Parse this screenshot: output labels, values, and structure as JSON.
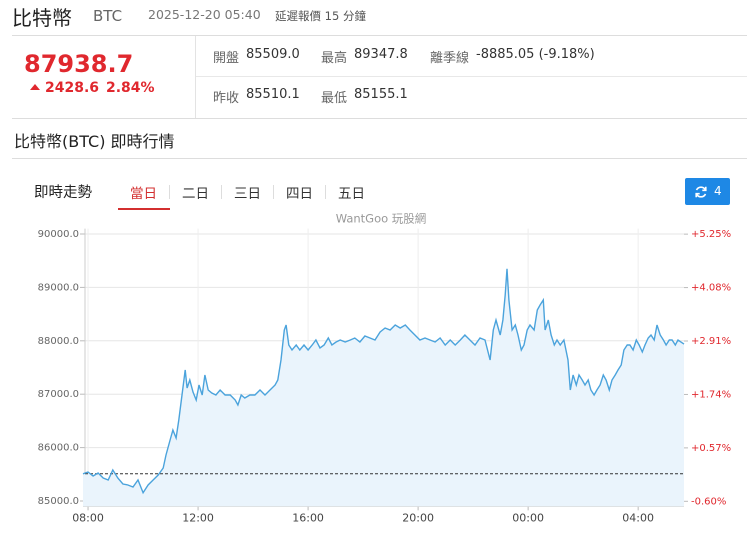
{
  "header": {
    "name": "比特幣",
    "symbol": "BTC",
    "time": "2025-12-20 05:40",
    "delay": "延遲報價 15 分鐘"
  },
  "quote": {
    "price": 87938.7,
    "change": 2428.6,
    "change_pct": "2.84%",
    "stats": [
      {
        "label": "開盤",
        "value": "85509.0"
      },
      {
        "label": "最高",
        "value": 89347.8
      },
      {
        "label": "離季線",
        "value": "-8885.05 (-9.18%)"
      },
      {
        "label": "昨收",
        "value": 85510.1
      },
      {
        "label": "最低",
        "value": 85155.1
      }
    ]
  },
  "section_title": "比特幣(BTC) 即時行情",
  "tabs": {
    "title": "即時走勢",
    "items": [
      "當日",
      "二日",
      "三日",
      "四日",
      "五日"
    ],
    "active": 0,
    "refresh_count": 4
  },
  "chart_data": {
    "type": "line",
    "watermark": "WantGoo 玩股網",
    "color": "#4ba3dc",
    "area_color": "#eaf4fc",
    "grid": true,
    "x": [
      "07:49",
      "08:00",
      "08:11",
      "08:22",
      "08:33",
      "08:44",
      "08:54",
      "09:05",
      "09:16",
      "09:27",
      "09:38",
      "09:49",
      "10:00",
      "10:11",
      "10:22",
      "10:33",
      "10:44",
      "10:50",
      "10:59",
      "11:05",
      "11:12",
      "11:18",
      "11:25",
      "11:32",
      "11:36",
      "11:42",
      "11:49",
      "11:56",
      "12:02",
      "12:09",
      "12:15",
      "12:22",
      "12:30",
      "12:39",
      "12:48",
      "12:59",
      "13:10",
      "13:21",
      "13:27",
      "13:34",
      "13:42",
      "13:53",
      "14:04",
      "14:15",
      "14:26",
      "14:37",
      "14:48",
      "14:54",
      "15:01",
      "15:08",
      "15:12",
      "15:18",
      "15:25",
      "15:34",
      "15:42",
      "15:51",
      "16:00",
      "16:09",
      "16:17",
      "16:26",
      "16:35",
      "16:44",
      "16:52",
      "17:01",
      "17:10",
      "17:21",
      "17:32",
      "17:42",
      "17:53",
      "18:04",
      "18:15",
      "18:26",
      "18:37",
      "18:48",
      "18:59",
      "19:10",
      "19:21",
      "19:32",
      "19:42",
      "19:53",
      "20:04",
      "20:15",
      "20:26",
      "20:37",
      "20:48",
      "20:59",
      "21:10",
      "21:21",
      "21:32",
      "21:42",
      "21:53",
      "22:04",
      "22:15",
      "22:26",
      "22:37",
      "22:44",
      "22:50",
      "22:59",
      "23:05",
      "23:10",
      "23:14",
      "23:18",
      "23:25",
      "23:32",
      "23:38",
      "23:45",
      "23:51",
      "23:58",
      "00:04",
      "00:13",
      "00:20",
      "00:26",
      "00:33",
      "00:37",
      "00:44",
      "00:50",
      "00:57",
      "01:03",
      "01:10",
      "01:18",
      "01:27",
      "01:32",
      "01:38",
      "01:45",
      "01:51",
      "01:58",
      "02:04",
      "02:11",
      "02:17",
      "02:24",
      "02:30",
      "02:37",
      "02:44",
      "02:50",
      "02:57",
      "03:03",
      "03:10",
      "03:16",
      "03:23",
      "03:29",
      "03:36",
      "03:42",
      "03:49",
      "03:56",
      "04:02",
      "04:09",
      "04:15",
      "04:22",
      "04:28",
      "04:35",
      "04:41",
      "04:48",
      "04:55",
      "05:01",
      "05:08",
      "05:14",
      "05:21",
      "05:27",
      "05:40"
    ],
    "values": [
      85509,
      85543,
      85468,
      85524,
      85431,
      85393,
      85580,
      85431,
      85318,
      85300,
      85262,
      85393,
      85155.1,
      85300,
      85393,
      85487,
      85618,
      85861,
      86142,
      86330,
      86180,
      86517,
      86985,
      87453,
      87116,
      87266,
      87041,
      86891,
      87172,
      86985,
      87360,
      87079,
      87022,
      86985,
      87079,
      86985,
      86985,
      86891,
      86798,
      86985,
      86929,
      86985,
      86985,
      87079,
      86985,
      87079,
      87172,
      87266,
      87640,
      88202,
      88296,
      87921,
      87828,
      87921,
      87828,
      87921,
      87828,
      87921,
      88015,
      87865,
      87921,
      88052,
      87921,
      87977,
      88015,
      87977,
      88015,
      88052,
      87977,
      88090,
      88052,
      88015,
      88165,
      88240,
      88202,
      88296,
      88240,
      88296,
      88202,
      88109,
      88015,
      88052,
      88015,
      87977,
      88052,
      87921,
      88015,
      87921,
      88015,
      88109,
      88015,
      87921,
      88052,
      88015,
      87640,
      88202,
      88389,
      88109,
      88389,
      88858,
      89347.8,
      88764,
      88202,
      88296,
      88109,
      87828,
      87921,
      88202,
      88296,
      88202,
      88577,
      88670,
      88764,
      88202,
      88389,
      88109,
      87921,
      88015,
      87921,
      88015,
      87640,
      87079,
      87360,
      87172,
      87360,
      87266,
      87172,
      87266,
      87079,
      86985,
      87079,
      87172,
      87360,
      87266,
      87079,
      87266,
      87360,
      87453,
      87547,
      87828,
      87921,
      87921,
      87828,
      88015,
      87921,
      87790,
      87921,
      88052,
      88109,
      88015,
      88296,
      88109,
      88015,
      87921,
      88015,
      88015,
      87921,
      88015,
      87938.7
    ],
    "xlim": [
      "07:49",
      "05:40"
    ],
    "xticks": [
      "08:00",
      "12:00",
      "16:00",
      "20:00",
      "00:00",
      "04:00"
    ],
    "ylim": [
      84900,
      90100
    ],
    "yticks": [
      {
        "value": 90000,
        "label": "90000.0"
      },
      {
        "value": 89000,
        "label": "89000.0"
      },
      {
        "value": 88000,
        "label": "88000.0"
      },
      {
        "value": 87000,
        "label": "87000.0"
      },
      {
        "value": 86000,
        "label": "86000.0"
      },
      {
        "value": 85000,
        "label": "85000.0"
      }
    ],
    "y2lim": [
      -0.71,
      5.37
    ],
    "y2ticks": [
      {
        "value": 5.25,
        "label": "+5.25%"
      },
      {
        "value": 4.08,
        "label": "+4.08%"
      },
      {
        "value": 2.91,
        "label": "+2.91%"
      },
      {
        "value": 1.74,
        "label": "+1.74%"
      },
      {
        "value": 0.57,
        "label": "+0.57%"
      },
      {
        "value": -0.6,
        "label": "-0.60%"
      }
    ]
  }
}
